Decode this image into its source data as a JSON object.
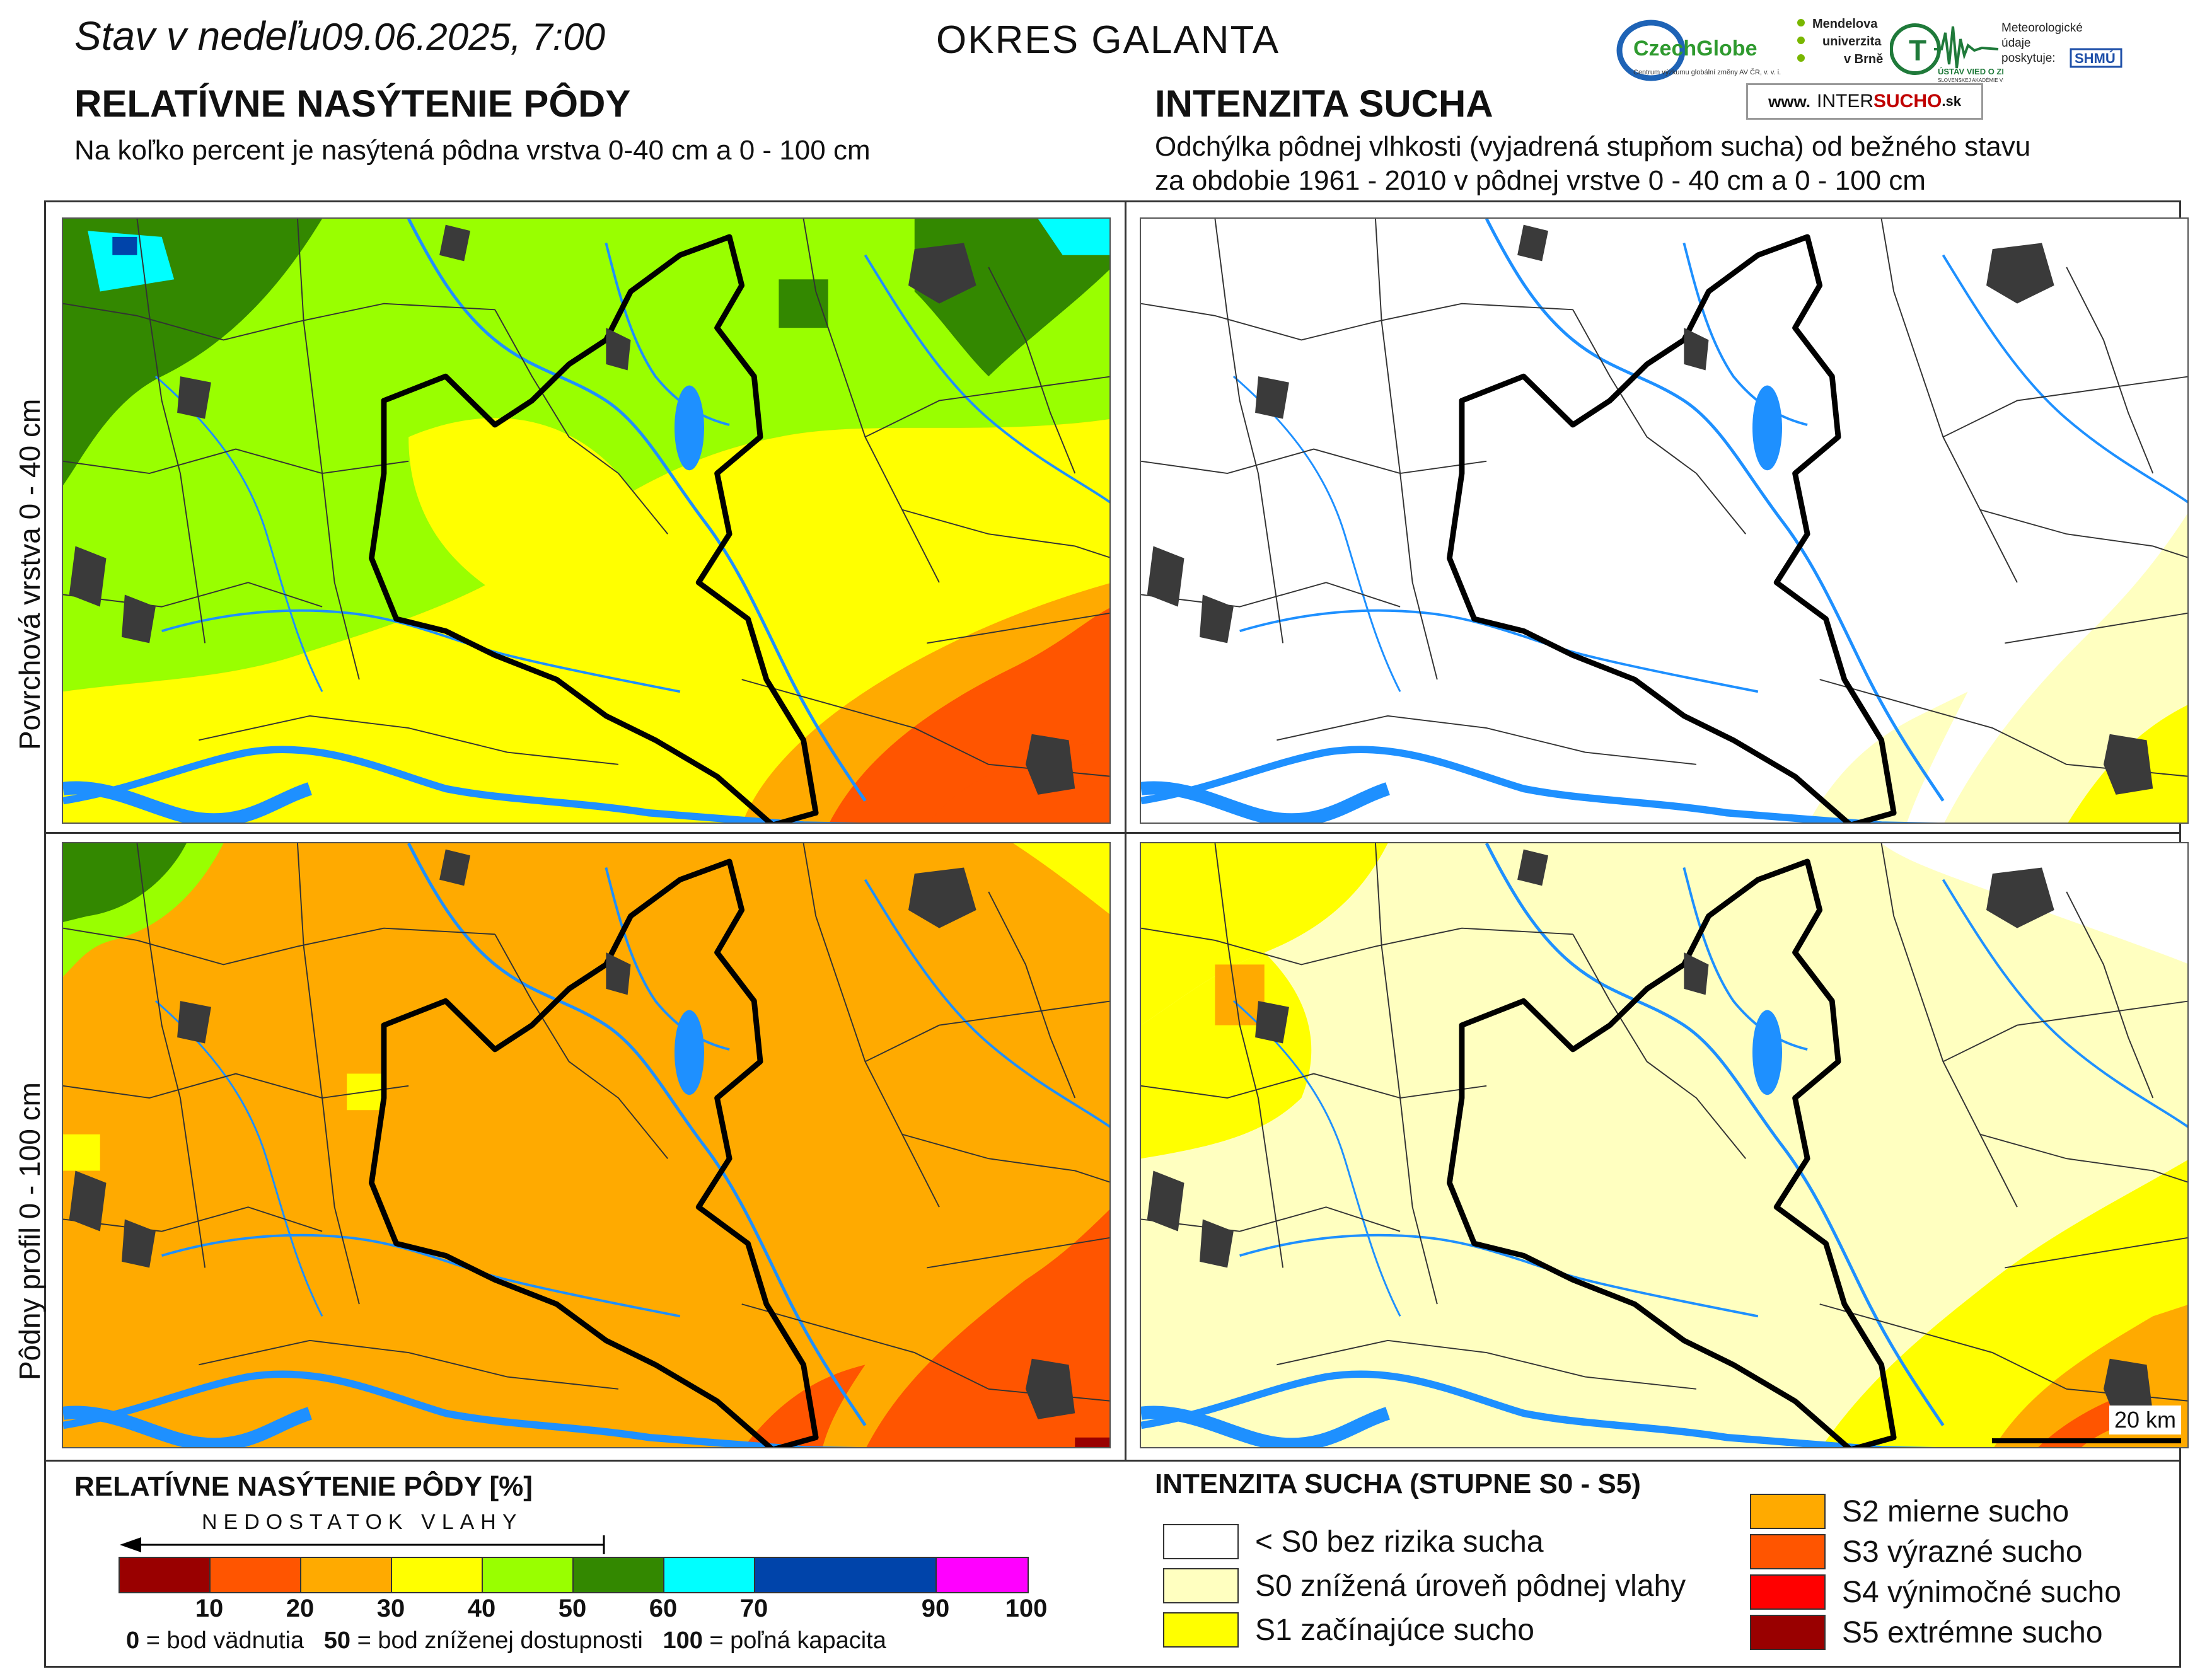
{
  "header": {
    "date_prefix": "Stav v nedeľu",
    "date": "09.06.2025, 7:00",
    "district": "OKRES  GALANTA"
  },
  "left_section": {
    "title": "RELATÍVNE NASÝTENIE PÔDY",
    "subtitle": "Na koľko percent je nasýtená pôdna vrstva 0-40 cm a 0 - 100 cm"
  },
  "right_section": {
    "title": "INTENZITA SUCHA",
    "subtitle_line1": "Odchýlka pôdnej vlhkosti (vyjadrená stupňom sucha) od bežného stavu",
    "subtitle_line2": "za obdobie 1961 - 2010 v pôdnej vrstve 0 - 40 cm a 0 - 100 cm"
  },
  "logos": {
    "czechglobe": "CzechGlobe",
    "czechglobe_sub": "Centrum výzkumu globální změny AV ČR, v. v. i.",
    "mendelu": "Mendelova univerzita v Brně",
    "ustav": "ÚSTAV VIED O ZEMI",
    "ustav_sub": "SLOVENSKEJ AKADÉMIE VIED",
    "meteo": "Meteorologické údaje poskytuje:",
    "shmu": "SHMÚ",
    "website_prefix": "www.",
    "website_a": "INTER",
    "website_b": "SUCHO",
    "website_c": ".sk"
  },
  "row_labels": {
    "top": "Povrchová vrstva 0 - 40 cm",
    "bottom": "Pôdny profil 0 - 100 cm"
  },
  "scale_bar": "20 km",
  "saturation_legend": {
    "title": "RELATÍVNE NASÝTENIE PÔDY [%]",
    "arrow_label": "NEDOSTATOK VLAHY",
    "classes": [
      {
        "from": 0,
        "to": 10,
        "color": "#990000"
      },
      {
        "from": 10,
        "to": 20,
        "color": "#ff5500"
      },
      {
        "from": 20,
        "to": 30,
        "color": "#ffaa00"
      },
      {
        "from": 30,
        "to": 40,
        "color": "#ffff00"
      },
      {
        "from": 40,
        "to": 50,
        "color": "#99ff00"
      },
      {
        "from": 50,
        "to": 60,
        "color": "#338800"
      },
      {
        "from": 60,
        "to": 70,
        "color": "#00ffff"
      },
      {
        "from": 70,
        "to": 90,
        "color": "#0044aa"
      },
      {
        "from": 90,
        "to": 100,
        "color": "#ff00ff"
      }
    ],
    "ticks": [
      "10",
      "20",
      "30",
      "40",
      "50",
      "60",
      "70",
      "90",
      "100"
    ],
    "foot": [
      {
        "value": "0",
        "text": " = bod vädnutia"
      },
      {
        "value": "50",
        "text": " = bod zníženej dostupnosti"
      },
      {
        "value": "100",
        "text": " = poľná kapacita"
      }
    ]
  },
  "drought_legend": {
    "title": "INTENZITA SUCHA (STUPNE S0 - S5)",
    "left_items": [
      {
        "label": "< S0 bez rizika sucha",
        "color": "#ffffff"
      },
      {
        "label": "S0 znížená úroveň pôdnej vlahy",
        "color": "#ffffc0"
      },
      {
        "label": "S1 začínajúce sucho",
        "color": "#ffff00"
      }
    ],
    "right_items": [
      {
        "label": "S2 mierne sucho",
        "color": "#ffaa00"
      },
      {
        "label": "S3 výrazné sucho",
        "color": "#ff5500"
      },
      {
        "label": "S4 výnimočné sucho",
        "color": "#ff0000"
      },
      {
        "label": "S5 extrémne sucho",
        "color": "#990000"
      }
    ]
  }
}
